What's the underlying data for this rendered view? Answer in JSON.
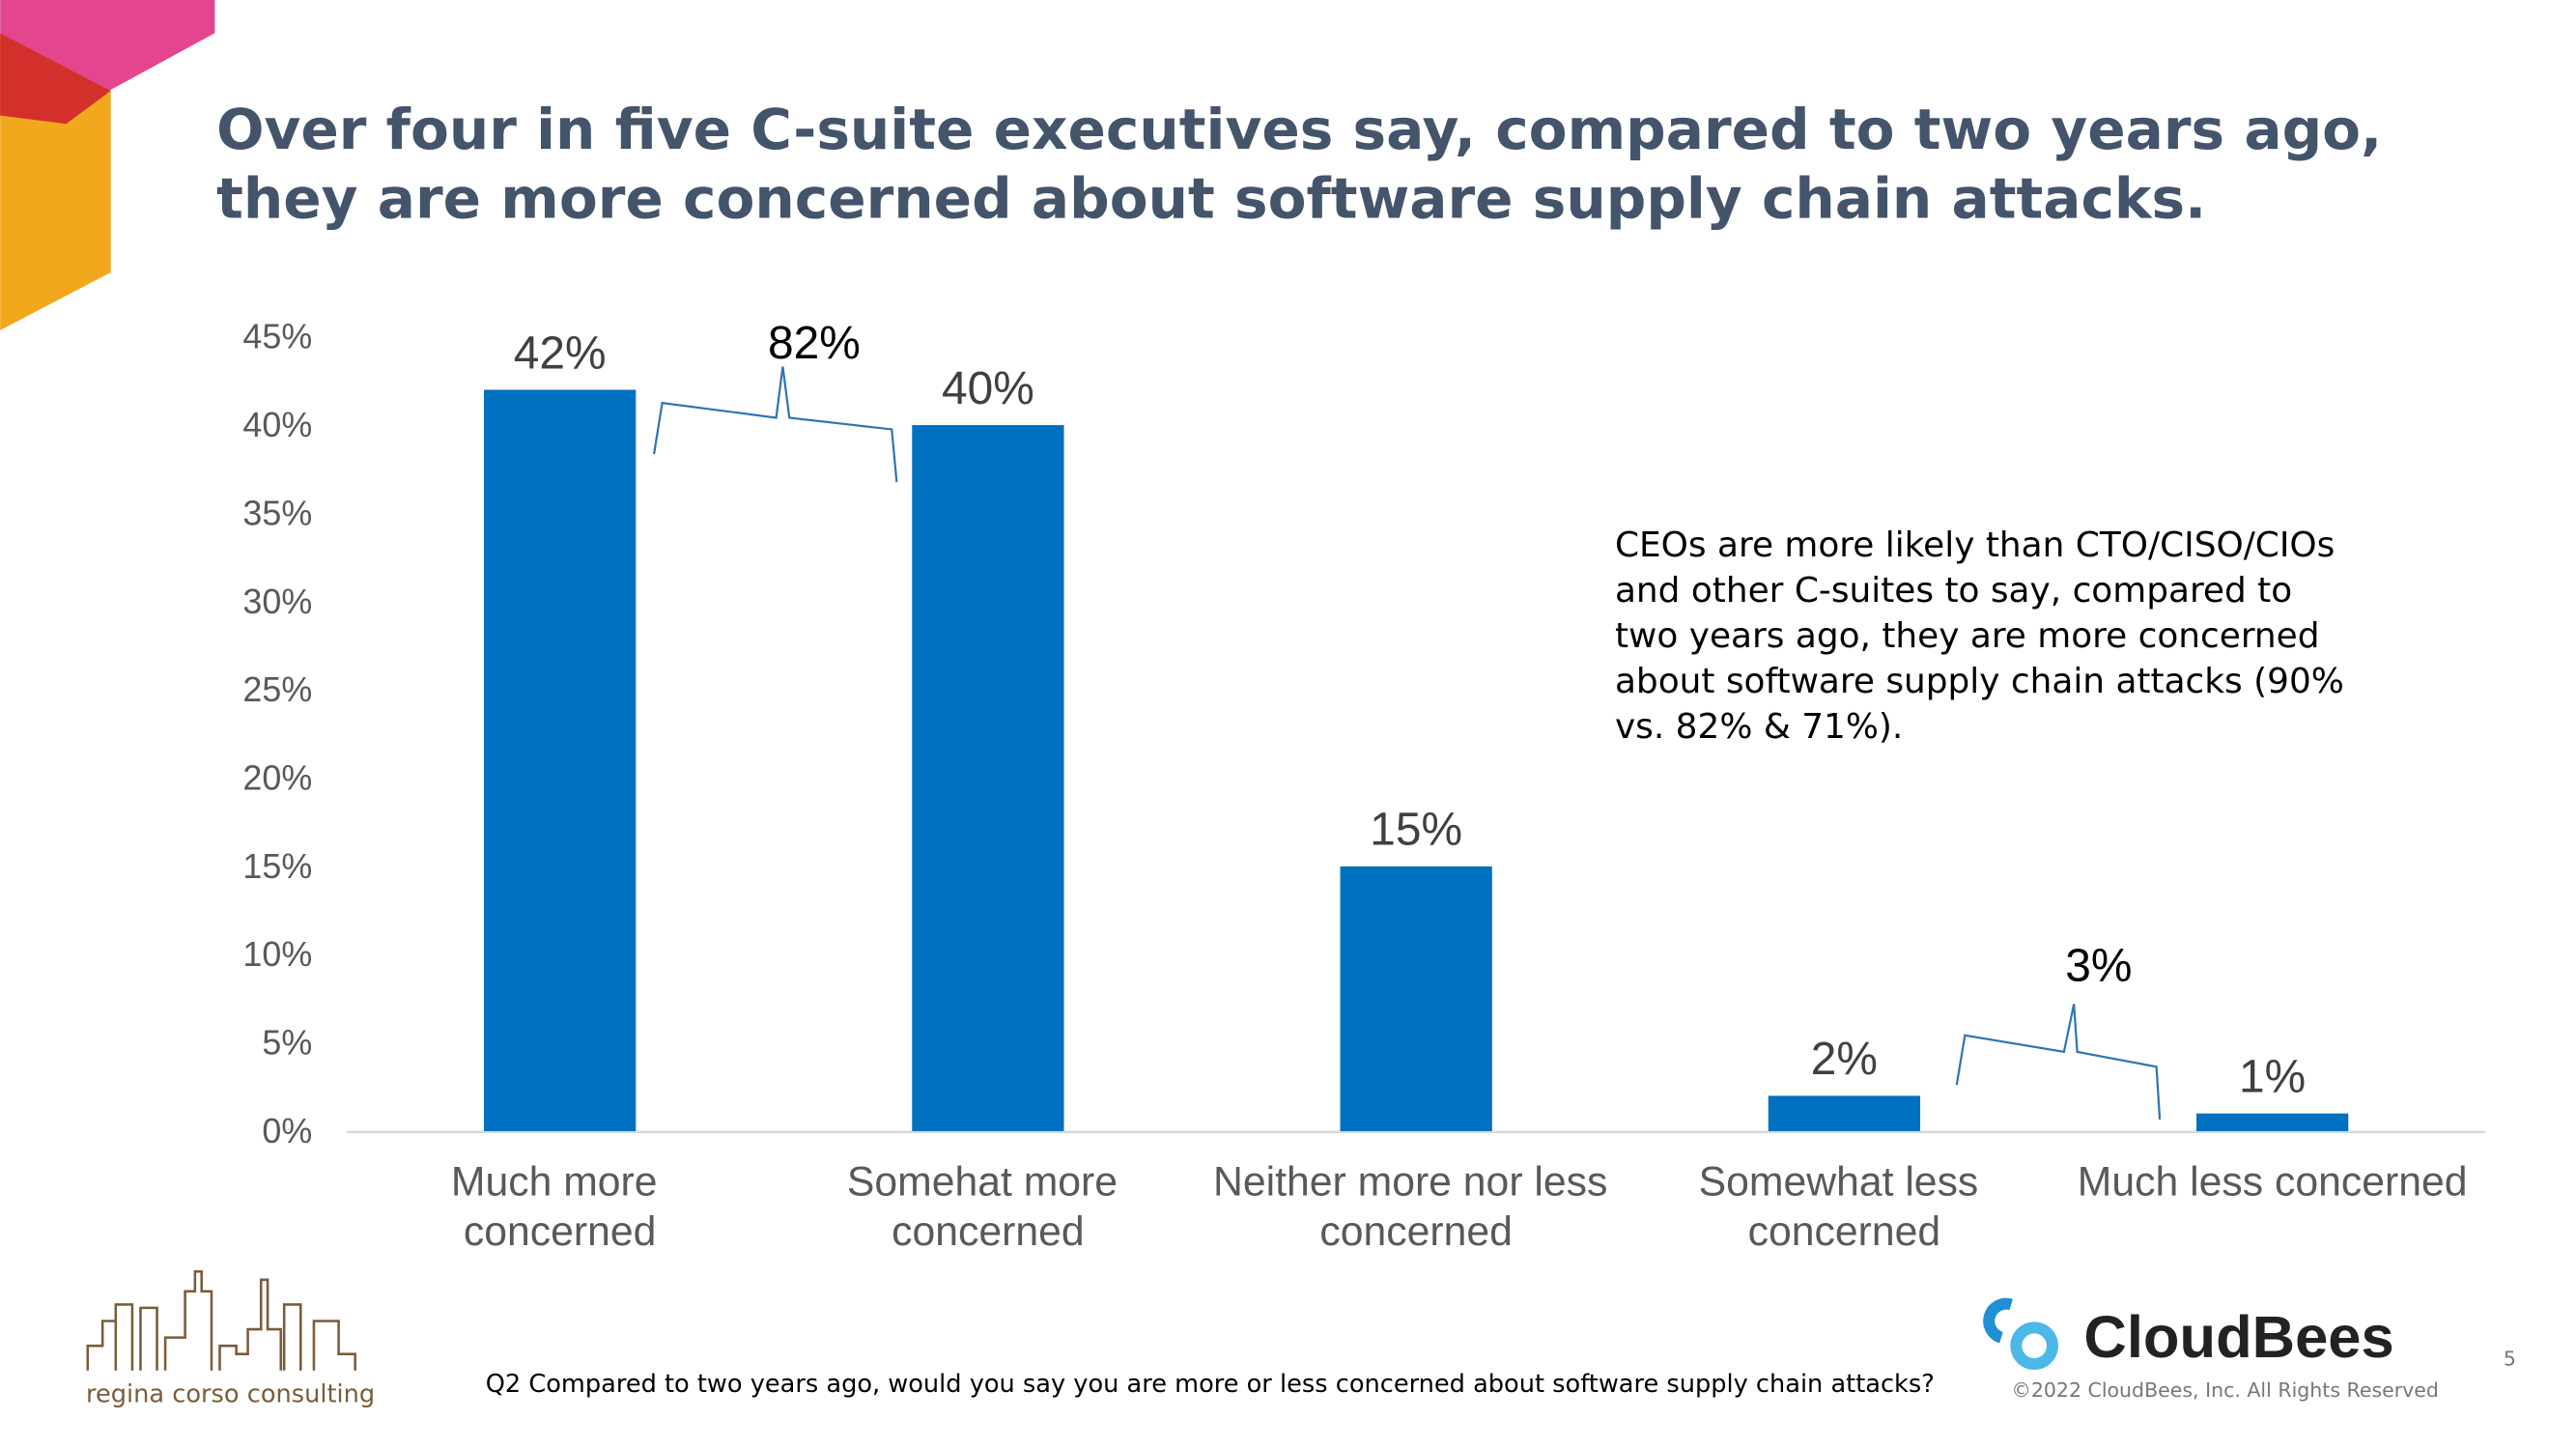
{
  "chart_data": {
    "type": "bar",
    "title": "Over four in five C-suite executives say, compared to two years ago, they are more concerned about software supply chain attacks.",
    "categories": [
      "Much more concerned",
      "Somehat more concerned",
      "Neither more nor less concerned",
      "Somewhat less concerned",
      "Much less concerned"
    ],
    "values": [
      42,
      40,
      15,
      2,
      1
    ],
    "value_labels": [
      "42%",
      "40%",
      "15%",
      "2%",
      "1%"
    ],
    "color": "#0070c0",
    "ylim": [
      0,
      45
    ],
    "yticks": [
      {
        "value": 0,
        "label": "0%"
      },
      {
        "value": 5,
        "label": "5%"
      },
      {
        "value": 10,
        "label": "10%"
      },
      {
        "value": 15,
        "label": "15%"
      },
      {
        "value": 20,
        "label": "20%"
      },
      {
        "value": 25,
        "label": "25%"
      },
      {
        "value": 30,
        "label": "30%"
      },
      {
        "value": 35,
        "label": "35%"
      },
      {
        "value": 40,
        "label": "40%"
      },
      {
        "value": 45,
        "label": "45%"
      }
    ],
    "grid": false,
    "annotations": [
      "82%",
      "3%",
      "CEOs are more likely than CTO/CISO/CIOs and other C-suites to say, compared to two years ago, they are more concerned about software supply chain attacks (90% vs. 82% & 71%)."
    ]
  },
  "footer": {
    "question": "Q2 Compared to two years ago, would you say you are more or less concerned about software supply chain attacks?",
    "left_logo": "regina corso consulting",
    "right_logo": "CloudBees",
    "copyright": "©2022 CloudBees, Inc. All Rights Reserved",
    "page_number": "5"
  }
}
